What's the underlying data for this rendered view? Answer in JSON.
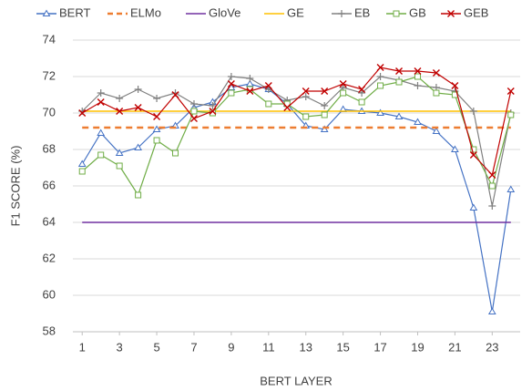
{
  "chart_data": {
    "type": "line",
    "x_label": "BERT LAYER",
    "y_label": "F1 SCORE (%)",
    "x": [
      1,
      2,
      3,
      4,
      5,
      6,
      7,
      8,
      9,
      10,
      11,
      12,
      13,
      14,
      15,
      16,
      17,
      18,
      19,
      20,
      21,
      22,
      23,
      24
    ],
    "xlim": [
      0.5,
      24.5
    ],
    "xticks": [
      1,
      3,
      5,
      7,
      9,
      11,
      13,
      15,
      17,
      19,
      21,
      23
    ],
    "ylim": [
      58,
      74
    ],
    "yticks": [
      58,
      60,
      62,
      64,
      66,
      68,
      70,
      72,
      74
    ],
    "grid": true,
    "legend": "top",
    "series": [
      {
        "name": "BERT",
        "color": "#4472c4",
        "marker": "triangle",
        "values": [
          67.2,
          68.9,
          67.8,
          68.1,
          69.1,
          69.3,
          70.3,
          70.6,
          71.4,
          71.6,
          71.3,
          70.5,
          69.3,
          69.1,
          70.2,
          70.1,
          70.0,
          69.8,
          69.5,
          69.0,
          68.0,
          64.8,
          59.1,
          65.8
        ]
      },
      {
        "name": "ELMo",
        "color": "#ed7d31",
        "dashed": true,
        "values": [
          69.2,
          69.2,
          69.2,
          69.2,
          69.2,
          69.2,
          69.2,
          69.2,
          69.2,
          69.2,
          69.2,
          69.2,
          69.2,
          69.2,
          69.2,
          69.2,
          69.2,
          69.2,
          69.2,
          69.2,
          69.2,
          69.2,
          69.2,
          69.2
        ]
      },
      {
        "name": "GloVe",
        "color": "#7030a0",
        "values": [
          64,
          64,
          64,
          64,
          64,
          64,
          64,
          64,
          64,
          64,
          64,
          64,
          64,
          64,
          64,
          64,
          64,
          64,
          64,
          64,
          64,
          64,
          64,
          64
        ]
      },
      {
        "name": "GE",
        "color": "#ffc000",
        "values": [
          70.1,
          70.1,
          70.1,
          70.1,
          70.1,
          70.1,
          70.1,
          70.1,
          70.1,
          70.1,
          70.1,
          70.1,
          70.1,
          70.1,
          70.1,
          70.1,
          70.1,
          70.1,
          70.1,
          70.1,
          70.1,
          70.1,
          70.1,
          70.1
        ]
      },
      {
        "name": "EB",
        "color": "#808080",
        "marker": "plus",
        "values": [
          70.1,
          71.1,
          70.8,
          71.3,
          70.8,
          71.1,
          70.5,
          70.4,
          72.0,
          71.9,
          71.3,
          70.7,
          70.9,
          70.4,
          71.4,
          71.1,
          72.0,
          71.8,
          71.5,
          71.4,
          71.2,
          70.1,
          64.9,
          70.0
        ]
      },
      {
        "name": "GB",
        "color": "#70ad47",
        "marker": "square",
        "values": [
          66.8,
          67.7,
          67.1,
          65.5,
          68.5,
          67.8,
          70.1,
          70.0,
          71.1,
          71.3,
          70.5,
          70.5,
          69.8,
          69.9,
          71.1,
          70.6,
          71.5,
          71.7,
          72.0,
          71.1,
          71.0,
          68.0,
          66.0,
          69.9
        ]
      },
      {
        "name": "GEB",
        "color": "#c00000",
        "marker": "x",
        "values": [
          70.0,
          70.6,
          70.1,
          70.3,
          69.8,
          71.0,
          69.7,
          70.1,
          71.6,
          71.2,
          71.5,
          70.3,
          71.2,
          71.2,
          71.6,
          71.3,
          72.5,
          72.3,
          72.3,
          72.2,
          71.5,
          67.7,
          66.6,
          71.2
        ]
      }
    ]
  }
}
